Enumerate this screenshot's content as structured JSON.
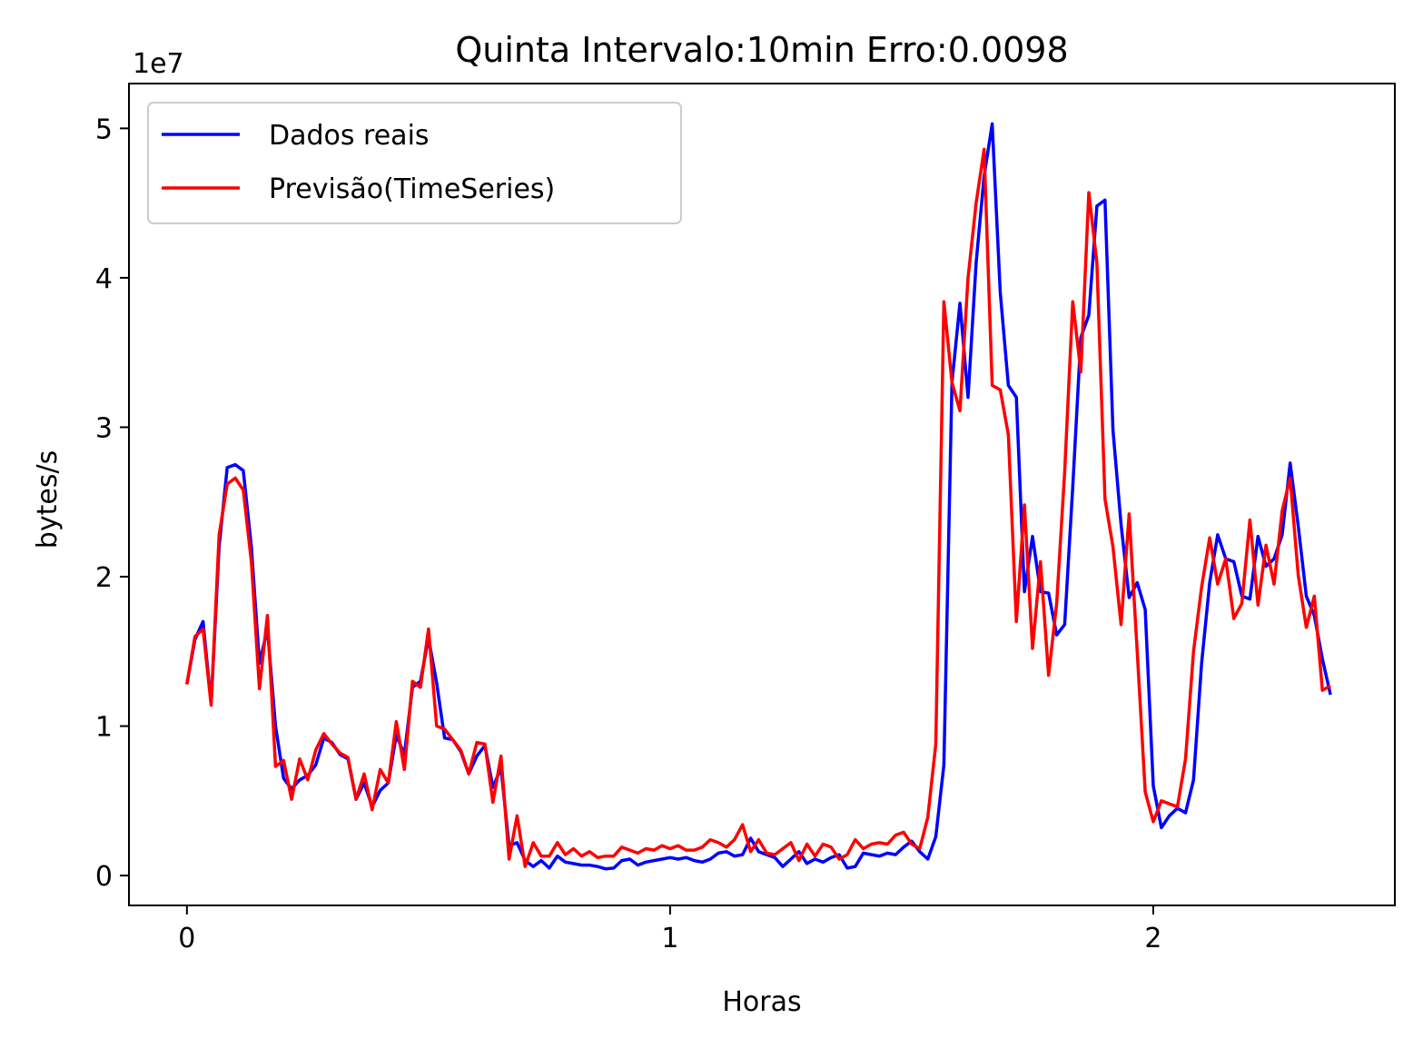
{
  "chart_data": {
    "type": "line",
    "title": "Quinta Intervalo:10min Erro:0.0098",
    "xlabel": "Horas",
    "ylabel": "bytes/s",
    "y_offset_label": "1e7",
    "xlim": [
      -0.12,
      2.5
    ],
    "ylim": [
      -2000000,
      53000000
    ],
    "xticks": [
      0,
      1,
      2
    ],
    "xtick_labels": [
      "0",
      "1",
      "2"
    ],
    "yticks": [
      0,
      10000000,
      20000000,
      30000000,
      40000000,
      50000000
    ],
    "ytick_labels": [
      "0",
      "1",
      "2",
      "3",
      "4",
      "5"
    ],
    "grid": false,
    "legend_position": "upper-left",
    "series": [
      {
        "name": "Dados reais",
        "color": "#0000ff",
        "x": [
          0.0,
          0.0167,
          0.0333,
          0.05,
          0.0667,
          0.0833,
          0.1,
          0.1167,
          0.1333,
          0.15,
          0.1667,
          0.1833,
          0.2,
          0.2167,
          0.2333,
          0.25,
          0.2667,
          0.2833,
          0.3,
          0.3167,
          0.3333,
          0.35,
          0.3667,
          0.3833,
          0.4,
          0.4167,
          0.4333,
          0.45,
          0.4667,
          0.4833,
          0.5,
          0.5167,
          0.5333,
          0.55,
          0.5667,
          0.5833,
          0.6,
          0.6167,
          0.6333,
          0.65,
          0.6667,
          0.6833,
          0.7,
          0.7167,
          0.7333,
          0.75,
          0.7667,
          0.7833,
          0.8,
          0.8167,
          0.8333,
          0.85,
          0.8667,
          0.8833,
          0.9,
          0.9167,
          0.9333,
          0.95,
          0.9667,
          0.9833,
          1.0,
          1.0167,
          1.0333,
          1.05,
          1.0667,
          1.0833,
          1.1,
          1.1167,
          1.1333,
          1.15,
          1.1667,
          1.1833,
          1.2,
          1.2167,
          1.2333,
          1.25,
          1.2667,
          1.2833,
          1.3,
          1.3167,
          1.3333,
          1.35,
          1.3667,
          1.3833,
          1.4,
          1.4167,
          1.4333,
          1.45,
          1.4667,
          1.4833,
          1.5,
          1.5167,
          1.5333,
          1.55,
          1.5667,
          1.5833,
          1.6,
          1.6167,
          1.6333,
          1.65,
          1.6667,
          1.6833,
          1.7,
          1.7167,
          1.7333,
          1.75,
          1.7667,
          1.7833,
          1.8,
          1.8167,
          1.8333,
          1.85,
          1.8667,
          1.8833,
          1.9,
          1.9167,
          1.9333,
          1.95,
          1.9667,
          1.9833,
          2.0,
          2.0167,
          2.0333,
          2.05,
          2.0667,
          2.0833,
          2.1,
          2.1167,
          2.1333,
          2.15,
          2.1667,
          2.1833,
          2.2,
          2.2167,
          2.2333,
          2.25,
          2.2667,
          2.2833,
          2.3,
          2.3167,
          2.3333,
          2.35,
          2.3667
        ],
        "values": [
          12800000,
          15800000,
          17000000,
          11500000,
          22000000,
          27300000,
          27500000,
          27100000,
          22000000,
          14200000,
          16500000,
          10000000,
          6500000,
          5800000,
          6400000,
          6700000,
          7400000,
          9200000,
          8900000,
          8100000,
          7800000,
          5100000,
          6200000,
          4600000,
          5700000,
          6200000,
          9400000,
          8100000,
          12600000,
          13000000,
          15900000,
          12900000,
          9200000,
          9100000,
          8300000,
          6800000,
          8000000,
          8700000,
          5900000,
          7200000,
          2000000,
          2200000,
          1000000,
          600000,
          1000000,
          500000,
          1300000,
          900000,
          800000,
          700000,
          700000,
          600000,
          450000,
          500000,
          1000000,
          1100000,
          700000,
          900000,
          1000000,
          1100000,
          1200000,
          1100000,
          1200000,
          1000000,
          900000,
          1100000,
          1500000,
          1600000,
          1300000,
          1400000,
          2500000,
          1600000,
          1400000,
          1200000,
          600000,
          1100000,
          1600000,
          800000,
          1100000,
          900000,
          1200000,
          1400000,
          500000,
          600000,
          1500000,
          1400000,
          1300000,
          1500000,
          1400000,
          1900000,
          2300000,
          1600000,
          1100000,
          2600000,
          7400000,
          33000000,
          38300000,
          32000000,
          41000000,
          46800000,
          50300000,
          39000000,
          32800000,
          32000000,
          19000000,
          22700000,
          19000000,
          18900000,
          16100000,
          16800000,
          26000000,
          36000000,
          37500000,
          44800000,
          45200000,
          29800000,
          23500000,
          18600000,
          19600000,
          17800000,
          6000000,
          3200000,
          4000000,
          4500000,
          4200000,
          6400000,
          14200000,
          19600000,
          22800000,
          21200000,
          21000000,
          18700000,
          18500000,
          22700000,
          20700000,
          21200000,
          22800000,
          27600000,
          23400000,
          18700000,
          17400000,
          14500000,
          12100000
        ]
      },
      {
        "name": "Previsão(TimeSeries)",
        "color": "#ff0000",
        "x": [
          0.0,
          0.0167,
          0.0333,
          0.05,
          0.0667,
          0.0833,
          0.1,
          0.1167,
          0.1333,
          0.15,
          0.1667,
          0.1833,
          0.2,
          0.2167,
          0.2333,
          0.25,
          0.2667,
          0.2833,
          0.3,
          0.3167,
          0.3333,
          0.35,
          0.3667,
          0.3833,
          0.4,
          0.4167,
          0.4333,
          0.45,
          0.4667,
          0.4833,
          0.5,
          0.5167,
          0.5333,
          0.55,
          0.5667,
          0.5833,
          0.6,
          0.6167,
          0.6333,
          0.65,
          0.6667,
          0.6833,
          0.7,
          0.7167,
          0.7333,
          0.75,
          0.7667,
          0.7833,
          0.8,
          0.8167,
          0.8333,
          0.85,
          0.8667,
          0.8833,
          0.9,
          0.9167,
          0.9333,
          0.95,
          0.9667,
          0.9833,
          1.0,
          1.0167,
          1.0333,
          1.05,
          1.0667,
          1.0833,
          1.1,
          1.1167,
          1.1333,
          1.15,
          1.1667,
          1.1833,
          1.2,
          1.2167,
          1.2333,
          1.25,
          1.2667,
          1.2833,
          1.3,
          1.3167,
          1.3333,
          1.35,
          1.3667,
          1.3833,
          1.4,
          1.4167,
          1.4333,
          1.45,
          1.4667,
          1.4833,
          1.5,
          1.5167,
          1.5333,
          1.55,
          1.5667,
          1.5833,
          1.6,
          1.6167,
          1.6333,
          1.65,
          1.6667,
          1.6833,
          1.7,
          1.7167,
          1.7333,
          1.75,
          1.7667,
          1.7833,
          1.8,
          1.8167,
          1.8333,
          1.85,
          1.8667,
          1.8833,
          1.9,
          1.9167,
          1.9333,
          1.95,
          1.9667,
          1.9833,
          2.0,
          2.0167,
          2.0333,
          2.05,
          2.0667,
          2.0833,
          2.1,
          2.1167,
          2.1333,
          2.15,
          2.1667,
          2.1833,
          2.2,
          2.2167,
          2.2333,
          2.25,
          2.2667,
          2.2833,
          2.3,
          2.3167,
          2.3333,
          2.35,
          2.3667
        ],
        "values": [
          12800000,
          16000000,
          16500000,
          11400000,
          22800000,
          26200000,
          26600000,
          25800000,
          21000000,
          12500000,
          17400000,
          7300000,
          7700000,
          5100000,
          7800000,
          6400000,
          8400000,
          9500000,
          8800000,
          8200000,
          7900000,
          5100000,
          6800000,
          4400000,
          7100000,
          6200000,
          10300000,
          7100000,
          13000000,
          12600000,
          16500000,
          10000000,
          9800000,
          9100000,
          8400000,
          6800000,
          8900000,
          8800000,
          4900000,
          8000000,
          1100000,
          4000000,
          600000,
          2200000,
          1300000,
          1300000,
          2200000,
          1400000,
          1800000,
          1300000,
          1600000,
          1200000,
          1300000,
          1300000,
          1900000,
          1700000,
          1500000,
          1800000,
          1700000,
          2000000,
          1800000,
          2000000,
          1700000,
          1700000,
          1900000,
          2400000,
          2200000,
          1900000,
          2400000,
          3400000,
          1600000,
          2400000,
          1500000,
          1400000,
          1800000,
          2200000,
          1000000,
          2100000,
          1300000,
          2100000,
          1900000,
          1100000,
          1400000,
          2400000,
          1800000,
          2100000,
          2200000,
          2100000,
          2700000,
          2900000,
          2100000,
          1800000,
          3900000,
          8800000,
          38400000,
          33000000,
          31100000,
          40000000,
          45000000,
          48600000,
          32800000,
          32500000,
          29500000,
          17000000,
          24800000,
          15200000,
          21000000,
          13400000,
          18200000,
          27000000,
          38400000,
          33700000,
          45700000,
          41000000,
          25200000,
          22000000,
          16800000,
          24200000,
          15000000,
          5600000,
          3600000,
          5000000,
          4800000,
          4600000,
          7800000,
          15000000,
          19300000,
          22600000,
          19500000,
          21200000,
          17200000,
          18200000,
          23800000,
          18100000,
          22100000,
          19500000,
          24400000,
          26600000,
          20100000,
          16600000,
          18700000,
          12400000,
          12700000
        ]
      }
    ]
  }
}
